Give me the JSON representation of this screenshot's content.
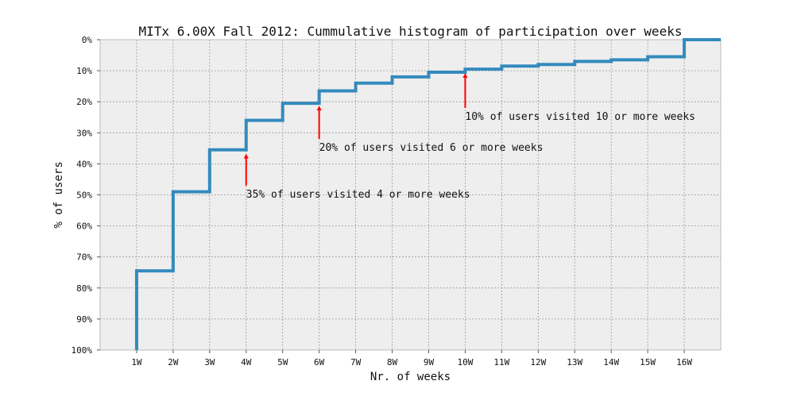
{
  "chart_data": {
    "type": "line",
    "step": true,
    "title": "MITx 6.00X Fall 2012: Cummulative histogram of participation over weeks",
    "xlabel": "Nr. of weeks",
    "ylabel": "% of users",
    "x_ticks": [
      "1W",
      "2W",
      "3W",
      "4W",
      "5W",
      "6W",
      "7W",
      "8W",
      "9W",
      "10W",
      "11W",
      "12W",
      "13W",
      "14W",
      "15W",
      "16W"
    ],
    "y_ticks": [
      "0%",
      "10%",
      "20%",
      "30%",
      "40%",
      "50%",
      "60%",
      "70%",
      "80%",
      "90%",
      "100%"
    ],
    "xlim": [
      0,
      17
    ],
    "ylim": [
      0,
      100
    ],
    "y_inverted": true,
    "grid": true,
    "background_color": "#eeeeee",
    "line_color": "#348abd",
    "arrow_color": "#ff0000",
    "series": [
      {
        "weeks": [
          1,
          2,
          3,
          4,
          5,
          6,
          7,
          8,
          9,
          10,
          11,
          12,
          13,
          14,
          15,
          16,
          17
        ],
        "percent_of_users": [
          74.5,
          49,
          35.5,
          26,
          20.5,
          16.5,
          14,
          12,
          10.5,
          9.5,
          8.5,
          8,
          7,
          6.5,
          5.5,
          0,
          0
        ]
      }
    ],
    "annotations": [
      {
        "text": "35% of users visited 4 or more weeks",
        "x": 4,
        "arrow_from": 47,
        "arrow_to": 37
      },
      {
        "text": "20% of users visited 6 or more weeks",
        "x": 6,
        "arrow_from": 32,
        "arrow_to": 21.5
      },
      {
        "text": "10% of users visited 10 or more weeks",
        "x": 10,
        "arrow_from": 22,
        "arrow_to": 11
      }
    ]
  }
}
